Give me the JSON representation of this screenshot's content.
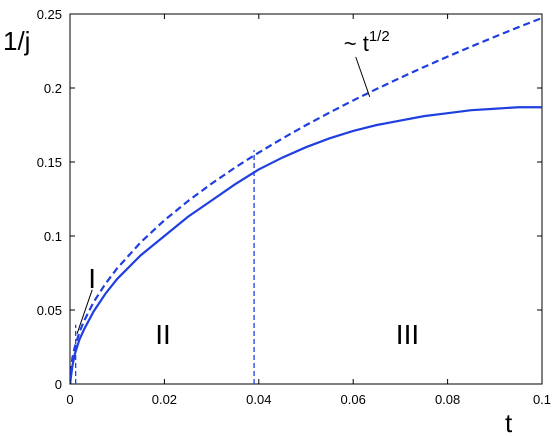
{
  "chart_data": {
    "type": "line",
    "xlabel": "t",
    "ylabel": "1/j",
    "xlim": [
      0,
      0.1
    ],
    "ylim": [
      0,
      0.25
    ],
    "x_ticks": [
      0,
      0.02,
      0.04,
      0.06,
      0.08,
      0.1
    ],
    "x_tick_labels": [
      "0",
      "0.02",
      "0.04",
      "0.06",
      "0.08",
      "0.1"
    ],
    "y_ticks": [
      0,
      0.05,
      0.1,
      0.15,
      0.2,
      0.25
    ],
    "y_tick_labels": [
      "0",
      "0.05",
      "0.1",
      "0.15",
      "0.2",
      "0.25"
    ],
    "grid": false,
    "line_color": "#1f3fe0",
    "series": [
      {
        "style": "solid",
        "x": [
          0,
          0.0005,
          0.001,
          0.002,
          0.003,
          0.005,
          0.0075,
          0.01,
          0.015,
          0.02,
          0.025,
          0.03,
          0.035,
          0.04,
          0.045,
          0.05,
          0.055,
          0.06,
          0.065,
          0.07,
          0.075,
          0.08,
          0.085,
          0.09,
          0.095,
          0.1
        ],
        "values": [
          0,
          0.012,
          0.02,
          0.03,
          0.037,
          0.049,
          0.061,
          0.071,
          0.087,
          0.1,
          0.113,
          0.124,
          0.135,
          0.145,
          0.153,
          0.16,
          0.166,
          0.171,
          0.175,
          0.178,
          0.181,
          0.183,
          0.185,
          0.186,
          0.187,
          0.187
        ]
      },
      {
        "style": "dashed",
        "x": [
          0,
          0.0005,
          0.001,
          0.002,
          0.003,
          0.005,
          0.0075,
          0.01,
          0.015,
          0.02,
          0.025,
          0.03,
          0.035,
          0.04,
          0.045,
          0.05,
          0.055,
          0.06,
          0.065,
          0.07,
          0.075,
          0.08,
          0.085,
          0.09,
          0.095,
          0.1
        ],
        "values": [
          0,
          0.0175,
          0.0247,
          0.035,
          0.0428,
          0.0553,
          0.0677,
          0.0782,
          0.0958,
          0.1106,
          0.1236,
          0.1354,
          0.1463,
          0.1564,
          0.1659,
          0.1749,
          0.1834,
          0.1916,
          0.1994,
          0.2069,
          0.2142,
          0.2212,
          0.228,
          0.2346,
          0.2411,
          0.2473
        ]
      }
    ],
    "vertical_markers": [
      0.0012,
      0.039
    ],
    "annotations": [
      {
        "text": "I",
        "x": 0.0047,
        "y": 0.065,
        "arrow_to": [
          0.0015,
          0.034
        ]
      },
      {
        "text": "II",
        "x": 0.0197,
        "y": 0.027
      },
      {
        "text": "III",
        "x": 0.0715,
        "y": 0.027
      },
      {
        "text": "~ t",
        "sup": "1/2",
        "x": 0.058,
        "y": 0.225,
        "arrow_to": [
          0.0635,
          0.194
        ]
      }
    ]
  }
}
